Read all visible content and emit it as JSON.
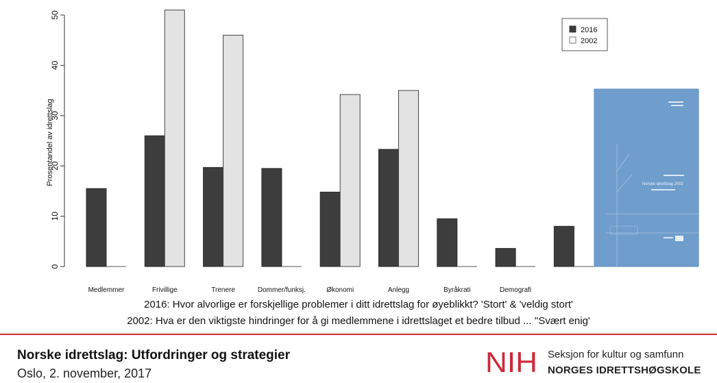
{
  "chart_data": {
    "type": "bar",
    "ylabel": "Prosentandel av idrettslag",
    "ylim": [
      0,
      52
    ],
    "yticks": [
      0,
      10,
      20,
      30,
      40,
      50
    ],
    "categories": [
      "Medlemmer",
      "Frivillige",
      "Trenere",
      "Dommer/funksj.",
      "Økonomi",
      "Anlegg",
      "Byråkrati",
      "Demografi",
      ""
    ],
    "series": [
      {
        "name": "2016",
        "color": "#3d3d3d",
        "values": [
          15.5,
          26,
          19.7,
          19.5,
          14.8,
          23.3,
          9.5,
          3.6,
          8
        ]
      },
      {
        "name": "2002",
        "color": "#e3e3e3",
        "values": [
          null,
          51,
          46,
          null,
          34.2,
          35,
          null,
          null,
          null
        ]
      }
    ],
    "legend_position": "top-right",
    "grid": false
  },
  "captions": {
    "line1": "2016: Hvor alvorlige er forskjellige problemer i ditt idrettslag for øyeblikkt? 'Stort' & 'veldig stort'",
    "line2": "2002: Hva er den viktigste hindringer for å gi medlemmene i idrettslaget et bedre tilbud ... ''Svært enig'"
  },
  "report_cover": {
    "color": "#6f9dcc",
    "text": "Norske idrettslag 2002"
  },
  "footer": {
    "title": "Norske idrettslag: Utfordringer og strategier",
    "date": "Oslo, 2. november, 2017",
    "logo_text": "NIH",
    "logo_color": "#cc2a3a",
    "dept_line1": "Seksjon for kultur og samfunn",
    "dept_line2": "NORGES IDRETTSHØGSKOLE"
  }
}
